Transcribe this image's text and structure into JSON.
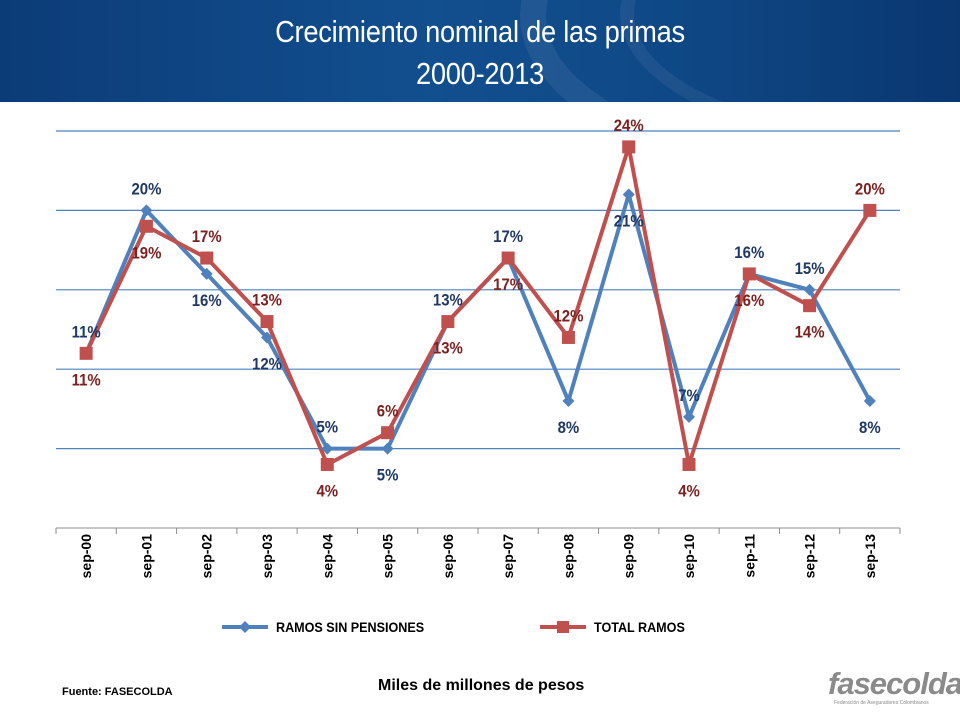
{
  "header": {
    "title_line1": "Crecimiento nominal de las primas",
    "title_line2": "2000-2013"
  },
  "footer": {
    "source": "Fuente: FASECOLDA",
    "units": "Miles de millones de pesos"
  },
  "logo": {
    "word": "fasecolda",
    "subtitle": "Federación de Aseguradores Colombianos"
  },
  "colors": {
    "banner": "#124f8f",
    "series_1": "#4f81bd",
    "series_2": "#c0504d",
    "label_1": "#1f3864",
    "label_2": "#7b2120",
    "grid": "#4f81bd"
  },
  "chart_data": {
    "type": "line",
    "categories": [
      "sep-00",
      "sep-01",
      "sep-02",
      "sep-03",
      "sep-04",
      "sep-05",
      "sep-06",
      "sep-07",
      "sep-08",
      "sep-09",
      "sep-10",
      "sep-11",
      "sep-12",
      "sep-13"
    ],
    "series": [
      {
        "name": "RAMOS SIN PENSIONES",
        "values": [
          11,
          20,
          16,
          12,
          5,
          5,
          13,
          17,
          8,
          21,
          7,
          16,
          15,
          8
        ],
        "labels": [
          "11%",
          "20%",
          "16%",
          "12%",
          "5%",
          "5%",
          "13%",
          "17%",
          "8%",
          "21%",
          "7%",
          "16%",
          "15%",
          "8%"
        ]
      },
      {
        "name": "TOTAL RAMOS",
        "values": [
          11,
          19,
          17,
          13,
          4,
          6,
          13,
          17,
          12,
          24,
          4,
          16,
          14,
          20
        ],
        "labels": [
          "11%",
          "19%",
          "17%",
          "13%",
          "4%",
          "6%",
          "13%",
          "17%",
          "12%",
          "24%",
          "4%",
          "16%",
          "14%",
          "20%"
        ]
      }
    ],
    "legend": "bottom",
    "grid": true,
    "marker_1": "diamond",
    "marker_2": "square"
  }
}
